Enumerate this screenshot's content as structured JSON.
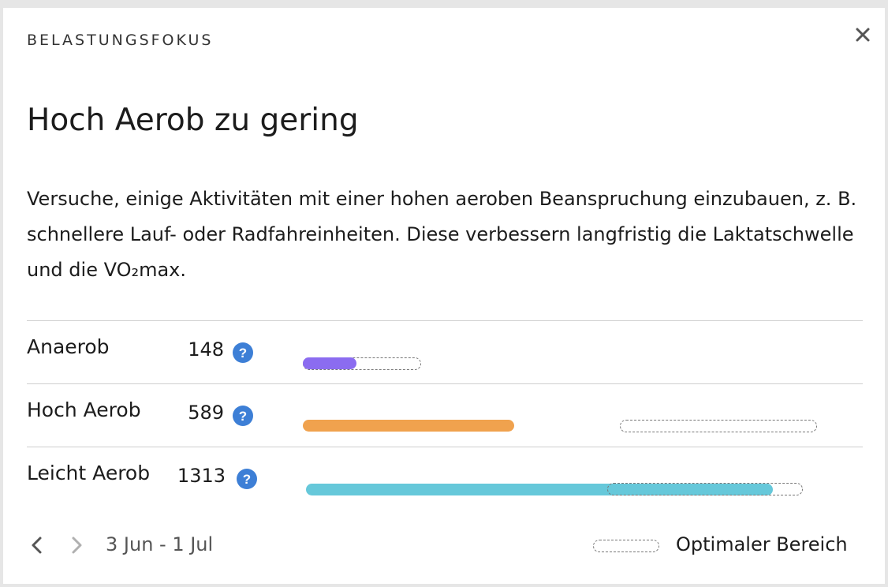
{
  "header": {
    "eyebrow": "BELASTUNGSFOKUS",
    "close_icon": "close-icon"
  },
  "headline": "Hoch Aerob zu gering",
  "description": "Versuche, einige Aktivitäten mit einer hohen aeroben Beanspruchung einzubauen, z. B. schnellere Lauf- oder Radfahreinheiten. Diese verbessern langfristig die Laktatschwelle und die VO₂max.",
  "colors": {
    "anaerob": "#8b6cf0",
    "hoch_aerob": "#f0a24e",
    "leicht_aerob": "#66c8da",
    "help": "#3d7fd6"
  },
  "rows": [
    {
      "label": "Anaerob",
      "value": "148",
      "help_icon": "question-icon"
    },
    {
      "label": "Hoch Aerob",
      "value": "589",
      "help_icon": "question-icon"
    },
    {
      "label": "Leicht Aerob",
      "value": "1313",
      "help_icon": "question-icon"
    }
  ],
  "footer": {
    "prev_icon": "chevron-left-icon",
    "next_icon": "chevron-right-icon",
    "date_range": "3 Jun - 1 Jul",
    "legend_label": "Optimaler Bereich"
  }
}
